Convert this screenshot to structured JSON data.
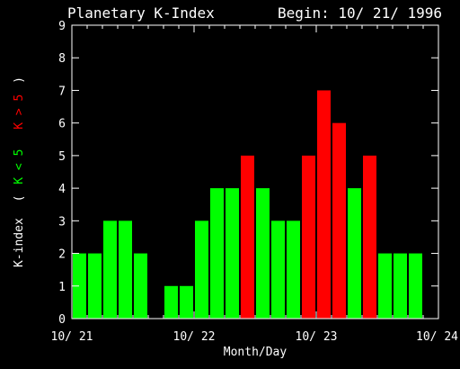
{
  "chart_data": {
    "type": "bar",
    "title": "Planetary K-Index",
    "subtitle": "Begin: 10/ 21/ 1996",
    "xlabel": "Month/Day",
    "ylabel": {
      "prefix": "K-index",
      "open": "(",
      "green_part": "K < 5",
      "red_part": "K > 5",
      "close": ")"
    },
    "ylim": [
      0,
      9
    ],
    "y_ticks": [
      "0",
      "1",
      "2",
      "3",
      "4",
      "5",
      "6",
      "7",
      "8",
      "9"
    ],
    "x_ticks": [
      "10/ 21",
      "10/ 22",
      "10/ 23",
      "10/ 24"
    ],
    "x_range_days": 3,
    "intervals_per_day": 8,
    "values": [
      2,
      2,
      3,
      3,
      2,
      null,
      1,
      1,
      3,
      4,
      4,
      5,
      4,
      3,
      3,
      5,
      7,
      6,
      4,
      5,
      2,
      2,
      2,
      null
    ],
    "threshold": 5,
    "colors": {
      "background": "#000000",
      "axis": "#ffffff",
      "text": "#ffffff",
      "low": "#00ff00",
      "high": "#ff0000"
    },
    "grid": false
  }
}
